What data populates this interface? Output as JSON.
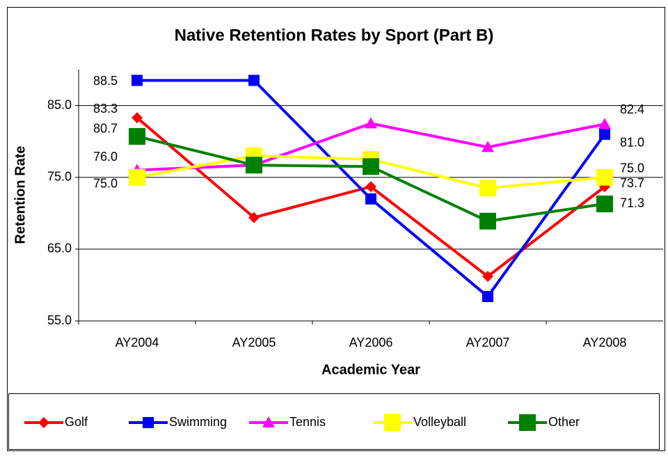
{
  "chart_data": {
    "type": "line",
    "title": "Native Retention Rates by Sport (Part B)",
    "x_label": "Academic Year",
    "y_label": "Retention Rate",
    "categories": [
      "AY2004",
      "AY2005",
      "AY2006",
      "AY2007",
      "AY2008"
    ],
    "ylim": [
      55,
      90
    ],
    "yticks": [
      {
        "value": 55,
        "label": "55.0"
      },
      {
        "value": 65,
        "label": "65.0"
      },
      {
        "value": 75,
        "label": "75.0"
      },
      {
        "value": 85,
        "label": "85.0"
      }
    ],
    "grid": true,
    "legend": "bottom",
    "series": [
      {
        "name": "Golf",
        "color": "#ff0000",
        "marker": "diamond",
        "values": [
          83.3,
          69.4,
          73.7,
          61.2,
          73.7
        ],
        "value_labels": [
          "83.3",
          null,
          null,
          null,
          "73.7"
        ]
      },
      {
        "name": "Swimming",
        "color": "#0000ff",
        "marker": "square",
        "values": [
          88.5,
          88.5,
          72.0,
          58.4,
          81.0
        ],
        "value_labels": [
          "88.5",
          null,
          null,
          null,
          "81.0"
        ]
      },
      {
        "name": "Tennis",
        "color": "#ff00ff",
        "marker": "triangle",
        "values": [
          76.0,
          76.7,
          82.5,
          79.2,
          82.4
        ],
        "value_labels": [
          "76.0",
          null,
          null,
          null,
          "82.4"
        ]
      },
      {
        "name": "Volleyball",
        "color": "#ffff00",
        "marker": "bigsquare",
        "values": [
          75.0,
          78.0,
          77.5,
          73.5,
          75.0
        ],
        "value_labels": [
          "75.0",
          null,
          null,
          null,
          "75.0"
        ]
      },
      {
        "name": "Other",
        "color": "#008000",
        "marker": "bigsquare",
        "values": [
          80.7,
          76.7,
          76.5,
          68.9,
          71.3
        ],
        "value_labels": [
          "80.7",
          null,
          null,
          null,
          "71.3"
        ]
      }
    ]
  }
}
